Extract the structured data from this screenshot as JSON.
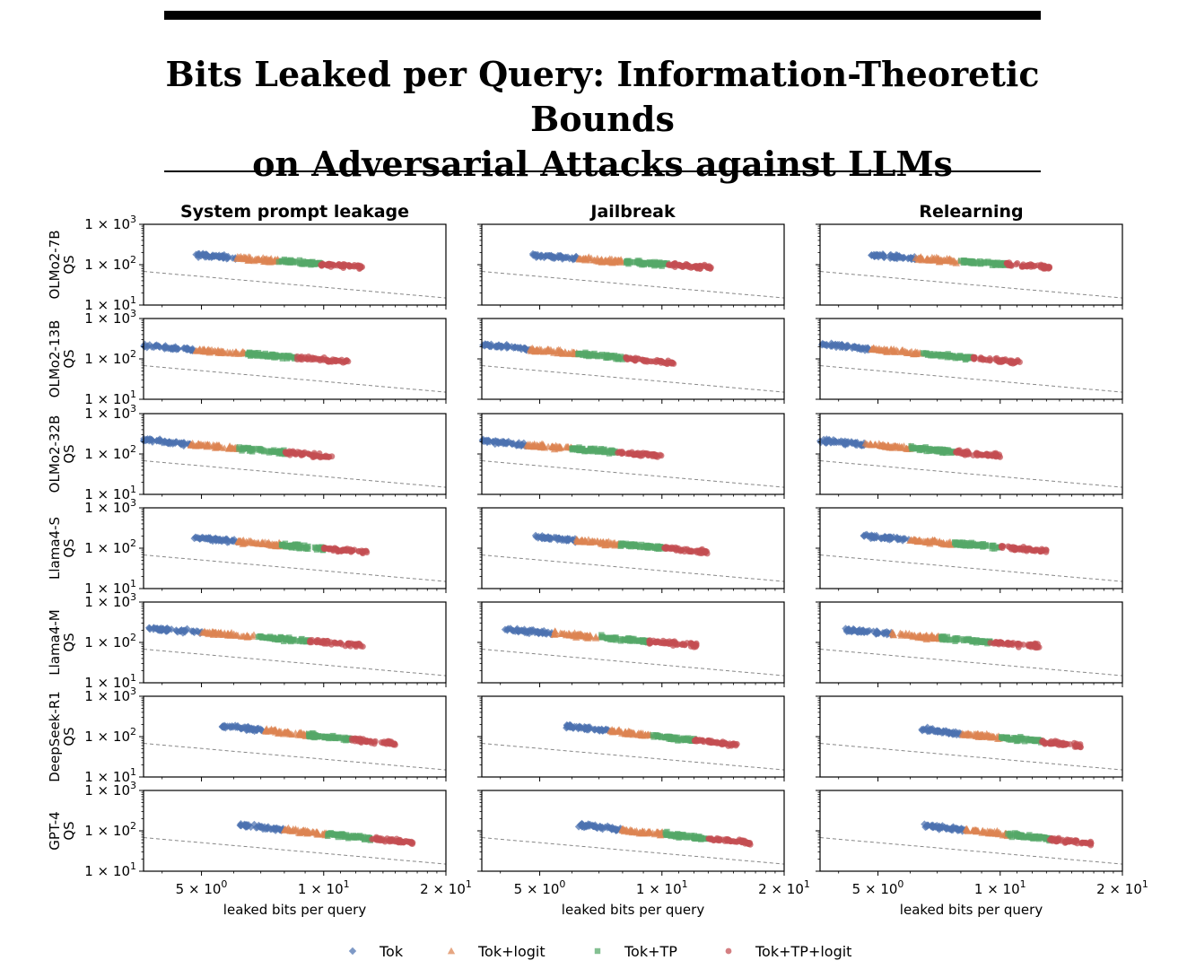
{
  "title": {
    "line1": "Bits Leaked per Query: Information-Theoretic Bounds",
    "line2": "on Adversarial Attacks against LLMs"
  },
  "chart_data": {
    "type": "scatter",
    "columns": [
      "System prompt leakage",
      "Jailbreak",
      "Relearning"
    ],
    "rows": [
      "OLMo2-7B",
      "OLMo2-13B",
      "OLMo2-32B",
      "Llama4-S",
      "Llama4-M",
      "DeepSeek-R1",
      "GPT-4"
    ],
    "ylabel": "QS",
    "xlabel": "leaked bits per query",
    "xscale": "log",
    "yscale": "log",
    "xlim": [
      3.6,
      20
    ],
    "ylim": [
      10,
      1000
    ],
    "x_ticks": [
      5,
      10,
      20
    ],
    "y_ticks": [
      10,
      100,
      1000
    ],
    "reference_line": {
      "style": "dashed",
      "color": "#888888",
      "x": [
        3.6,
        20
      ],
      "y": [
        68,
        15
      ]
    },
    "series": [
      {
        "name": "Tok",
        "color": "#4c72b0",
        "marker": "diamond"
      },
      {
        "name": "Tok+logit",
        "color": "#dd8452",
        "marker": "triangle"
      },
      {
        "name": "Tok+TP",
        "color": "#55a868",
        "marker": "square"
      },
      {
        "name": "Tok+TP+logit",
        "color": "#c44e52",
        "marker": "circle"
      }
    ],
    "clusters": [
      [
        {
          "x0": 4.8,
          "x1": 12.5,
          "y0": 175,
          "y1": 88
        },
        {
          "x0": 4.8,
          "x1": 13.3,
          "y0": 170,
          "y1": 85
        },
        {
          "x0": 4.8,
          "x1": 13.3,
          "y0": 170,
          "y1": 85
        }
      ],
      [
        {
          "x0": 3.6,
          "x1": 11.5,
          "y0": 210,
          "y1": 85
        },
        {
          "x0": 3.6,
          "x1": 10.7,
          "y0": 225,
          "y1": 80
        },
        {
          "x0": 3.6,
          "x1": 11.4,
          "y0": 230,
          "y1": 80
        }
      ],
      [
        {
          "x0": 3.6,
          "x1": 10.5,
          "y0": 225,
          "y1": 85
        },
        {
          "x0": 3.6,
          "x1": 10.0,
          "y0": 210,
          "y1": 90
        },
        {
          "x0": 3.6,
          "x1": 10.0,
          "y0": 215,
          "y1": 90
        }
      ],
      [
        {
          "x0": 4.8,
          "x1": 12.8,
          "y0": 180,
          "y1": 80
        },
        {
          "x0": 4.8,
          "x1": 13.0,
          "y0": 195,
          "y1": 80
        },
        {
          "x0": 4.6,
          "x1": 13.0,
          "y0": 200,
          "y1": 85
        }
      ],
      [
        {
          "x0": 3.7,
          "x1": 12.5,
          "y0": 225,
          "y1": 85
        },
        {
          "x0": 4.1,
          "x1": 12.2,
          "y0": 210,
          "y1": 85
        },
        {
          "x0": 4.1,
          "x1": 12.5,
          "y0": 205,
          "y1": 80
        }
      ],
      [
        {
          "x0": 5.6,
          "x1": 15.0,
          "y0": 185,
          "y1": 65
        },
        {
          "x0": 5.8,
          "x1": 15.3,
          "y0": 185,
          "y1": 62
        },
        {
          "x0": 6.4,
          "x1": 15.8,
          "y0": 150,
          "y1": 60
        }
      ],
      [
        {
          "x0": 6.2,
          "x1": 16.8,
          "y0": 140,
          "y1": 50
        },
        {
          "x0": 6.2,
          "x1": 16.6,
          "y0": 140,
          "y1": 50
        },
        {
          "x0": 6.5,
          "x1": 16.8,
          "y0": 135,
          "y1": 48
        }
      ]
    ]
  }
}
